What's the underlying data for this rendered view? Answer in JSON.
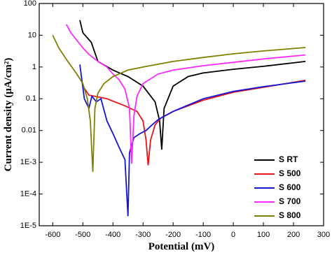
{
  "chart_data": {
    "type": "line",
    "x_label": "Potential (mV)",
    "y_label": "Current density (μA/cm²)",
    "yscale": "log",
    "xlim": [
      -645,
      300
    ],
    "ylim": [
      1e-05,
      100
    ],
    "xticks": [
      -600,
      -500,
      -400,
      -300,
      -200,
      -100,
      0,
      100,
      200,
      300
    ],
    "yticks": [
      100,
      10,
      1,
      0.1,
      0.01,
      {
        "value": 0.001,
        "label": "1E-3"
      },
      {
        "value": 0.0001,
        "label": "1E-4"
      },
      {
        "value": 1e-05,
        "label": "1E-5"
      }
    ],
    "series": [
      {
        "name": "S RT",
        "color": "#000000",
        "x": [
          -510,
          -500,
          -472,
          -450,
          -400,
          -350,
          -300,
          -260,
          -245,
          -238,
          -230,
          -200,
          -150,
          -100,
          0,
          100,
          240
        ],
        "values": [
          30,
          12,
          6,
          1.5,
          0.8,
          0.5,
          0.25,
          0.08,
          0.02,
          0.0025,
          0.05,
          0.25,
          0.5,
          0.65,
          0.85,
          1.05,
          1.5
        ]
      },
      {
        "name": "S 500",
        "color": "#e8141b",
        "x": [
          -500,
          -480,
          -420,
          -360,
          -320,
          -300,
          -290,
          -283,
          -275,
          -260,
          -240,
          -200,
          -100,
          0,
          100,
          240
        ],
        "values": [
          0.25,
          0.13,
          0.1,
          0.06,
          0.04,
          0.02,
          0.005,
          0.0008,
          0.005,
          0.015,
          0.025,
          0.04,
          0.09,
          0.16,
          0.23,
          0.38
        ]
      },
      {
        "name": "S 600",
        "color": "#1515d6",
        "x": [
          -510,
          -495,
          -480,
          -470,
          -455,
          -440,
          -420,
          -400,
          -380,
          -360,
          -350,
          -345,
          -330,
          -310,
          -290,
          -270,
          -250,
          -200,
          -100,
          0,
          100,
          240
        ],
        "values": [
          1.2,
          0.1,
          0.05,
          0.12,
          0.08,
          0.1,
          0.02,
          0.008,
          0.003,
          0.0012,
          2e-05,
          0.002,
          0.006,
          0.008,
          0.01,
          0.015,
          0.022,
          0.04,
          0.1,
          0.17,
          0.24,
          0.36
        ]
      },
      {
        "name": "S 700",
        "color": "#ff29ff",
        "x": [
          -555,
          -540,
          -500,
          -480,
          -450,
          -420,
          -400,
          -380,
          -360,
          -345,
          -338,
          -330,
          -320,
          -300,
          -250,
          -200,
          -100,
          0,
          100,
          240
        ],
        "values": [
          22,
          12,
          4,
          2.5,
          1.5,
          1.0,
          0.6,
          0.4,
          0.2,
          0.05,
          0.0009,
          0.03,
          0.12,
          0.3,
          0.6,
          0.8,
          1.1,
          1.4,
          1.8,
          2.4
        ]
      },
      {
        "name": "S 800",
        "color": "#808000",
        "x": [
          -600,
          -580,
          -550,
          -520,
          -500,
          -485,
          -475,
          -467,
          -460,
          -450,
          -430,
          -400,
          -350,
          -300,
          -200,
          -100,
          0,
          100,
          240
        ],
        "values": [
          10,
          4,
          1.5,
          0.6,
          0.3,
          0.1,
          0.02,
          0.0005,
          0.05,
          0.15,
          0.3,
          0.5,
          0.8,
          1.0,
          1.5,
          2.0,
          2.6,
          3.2,
          4.1
        ]
      }
    ]
  }
}
